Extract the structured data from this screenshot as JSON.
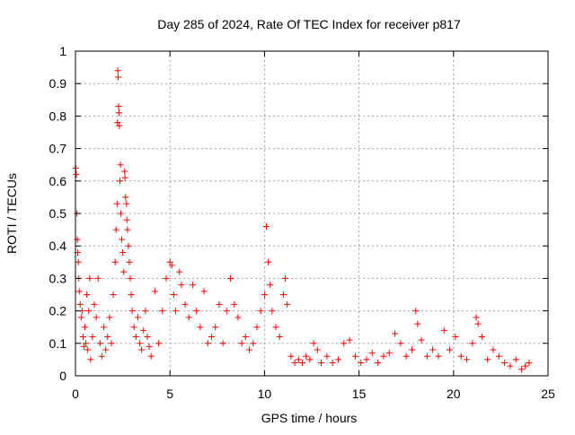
{
  "chart_data": {
    "type": "scatter",
    "title": "Day 285 of 2024, Rate Of TEC Index for receiver p817",
    "xlabel": "GPS time / hours",
    "ylabel": "ROTI / TECUs",
    "xlim": [
      0,
      25
    ],
    "ylim": [
      0,
      1
    ],
    "xticks": [
      0,
      5,
      10,
      15,
      20,
      25
    ],
    "xtick_labels": [
      "0",
      "5",
      "10",
      "15",
      "20",
      "25"
    ],
    "yticks": [
      0,
      0.1,
      0.2,
      0.3,
      0.4,
      0.5,
      0.6,
      0.7,
      0.8,
      0.9,
      1
    ],
    "ytick_labels": [
      "0",
      "0.1",
      "0.2",
      "0.3",
      "0.4",
      "0.5",
      "0.6",
      "0.7",
      "0.8",
      "0.9",
      "1"
    ],
    "grid": true,
    "marker": "+",
    "color": "#ff0000",
    "series": [
      {
        "points": [
          [
            0.02,
            0.64
          ],
          [
            0.05,
            0.62
          ],
          [
            0.08,
            0.5
          ],
          [
            0.1,
            0.42
          ],
          [
            0.12,
            0.38
          ],
          [
            0.15,
            0.35
          ],
          [
            0.18,
            0.3
          ],
          [
            0.2,
            0.26
          ],
          [
            0.25,
            0.22
          ],
          [
            0.3,
            0.18
          ],
          [
            0.35,
            0.2
          ],
          [
            0.4,
            0.12
          ],
          [
            0.45,
            0.09
          ],
          [
            0.5,
            0.15
          ],
          [
            0.55,
            0.1
          ],
          [
            0.6,
            0.25
          ],
          [
            0.65,
            0.08
          ],
          [
            0.7,
            0.2
          ],
          [
            0.75,
            0.3
          ],
          [
            0.8,
            0.05
          ],
          [
            0.9,
            0.12
          ],
          [
            1.0,
            0.22
          ],
          [
            1.1,
            0.18
          ],
          [
            1.2,
            0.3
          ],
          [
            1.3,
            0.1
          ],
          [
            1.4,
            0.06
          ],
          [
            1.5,
            0.15
          ],
          [
            1.6,
            0.08
          ],
          [
            1.7,
            0.12
          ],
          [
            1.8,
            0.18
          ],
          [
            1.9,
            0.1
          ],
          [
            2.0,
            0.25
          ],
          [
            2.1,
            0.35
          ],
          [
            2.15,
            0.45
          ],
          [
            2.2,
            0.53
          ],
          [
            2.22,
            0.78
          ],
          [
            2.24,
            0.94
          ],
          [
            2.26,
            0.92
          ],
          [
            2.28,
            0.83
          ],
          [
            2.3,
            0.81
          ],
          [
            2.32,
            0.77
          ],
          [
            2.35,
            0.6
          ],
          [
            2.38,
            0.65
          ],
          [
            2.4,
            0.5
          ],
          [
            2.45,
            0.42
          ],
          [
            2.5,
            0.38
          ],
          [
            2.55,
            0.32
          ],
          [
            2.6,
            0.63
          ],
          [
            2.62,
            0.61
          ],
          [
            2.65,
            0.55
          ],
          [
            2.7,
            0.53
          ],
          [
            2.72,
            0.48
          ],
          [
            2.75,
            0.45
          ],
          [
            2.8,
            0.4
          ],
          [
            2.85,
            0.35
          ],
          [
            2.9,
            0.3
          ],
          [
            2.95,
            0.25
          ],
          [
            3.0,
            0.2
          ],
          [
            3.1,
            0.15
          ],
          [
            3.2,
            0.12
          ],
          [
            3.3,
            0.18
          ],
          [
            3.4,
            0.1
          ],
          [
            3.5,
            0.08
          ],
          [
            3.6,
            0.14
          ],
          [
            3.7,
            0.2
          ],
          [
            3.8,
            0.12
          ],
          [
            3.9,
            0.09
          ],
          [
            4.0,
            0.06
          ],
          [
            4.2,
            0.26
          ],
          [
            4.4,
            0.1
          ],
          [
            4.6,
            0.2
          ],
          [
            4.8,
            0.3
          ],
          [
            5.0,
            0.35
          ],
          [
            5.1,
            0.34
          ],
          [
            5.2,
            0.25
          ],
          [
            5.3,
            0.2
          ],
          [
            5.5,
            0.32
          ],
          [
            5.6,
            0.28
          ],
          [
            5.8,
            0.22
          ],
          [
            6.0,
            0.18
          ],
          [
            6.2,
            0.28
          ],
          [
            6.4,
            0.2
          ],
          [
            6.6,
            0.15
          ],
          [
            6.8,
            0.26
          ],
          [
            7.0,
            0.1
          ],
          [
            7.2,
            0.12
          ],
          [
            7.4,
            0.15
          ],
          [
            7.6,
            0.22
          ],
          [
            7.8,
            0.1
          ],
          [
            8.0,
            0.2
          ],
          [
            8.2,
            0.3
          ],
          [
            8.4,
            0.22
          ],
          [
            8.6,
            0.18
          ],
          [
            8.8,
            0.1
          ],
          [
            9.0,
            0.12
          ],
          [
            9.2,
            0.08
          ],
          [
            9.4,
            0.1
          ],
          [
            9.6,
            0.15
          ],
          [
            9.8,
            0.2
          ],
          [
            10.0,
            0.25
          ],
          [
            10.1,
            0.46
          ],
          [
            10.2,
            0.35
          ],
          [
            10.3,
            0.28
          ],
          [
            10.4,
            0.2
          ],
          [
            10.6,
            0.15
          ],
          [
            10.8,
            0.12
          ],
          [
            11.0,
            0.25
          ],
          [
            11.1,
            0.3
          ],
          [
            11.2,
            0.22
          ],
          [
            11.4,
            0.06
          ],
          [
            11.6,
            0.04
          ],
          [
            11.8,
            0.05
          ],
          [
            12.0,
            0.04
          ],
          [
            12.2,
            0.06
          ],
          [
            12.4,
            0.05
          ],
          [
            12.6,
            0.1
          ],
          [
            12.8,
            0.08
          ],
          [
            13.0,
            0.04
          ],
          [
            13.3,
            0.06
          ],
          [
            13.6,
            0.04
          ],
          [
            13.9,
            0.05
          ],
          [
            14.2,
            0.1
          ],
          [
            14.5,
            0.11
          ],
          [
            14.8,
            0.06
          ],
          [
            15.1,
            0.04
          ],
          [
            15.4,
            0.05
          ],
          [
            15.7,
            0.07
          ],
          [
            16.0,
            0.04
          ],
          [
            16.3,
            0.06
          ],
          [
            16.6,
            0.07
          ],
          [
            16.9,
            0.13
          ],
          [
            17.2,
            0.1
          ],
          [
            17.5,
            0.06
          ],
          [
            17.8,
            0.08
          ],
          [
            18.0,
            0.2
          ],
          [
            18.1,
            0.16
          ],
          [
            18.3,
            0.11
          ],
          [
            18.6,
            0.06
          ],
          [
            18.9,
            0.08
          ],
          [
            19.2,
            0.06
          ],
          [
            19.5,
            0.14
          ],
          [
            19.8,
            0.08
          ],
          [
            20.1,
            0.12
          ],
          [
            20.4,
            0.06
          ],
          [
            20.7,
            0.05
          ],
          [
            21.0,
            0.1
          ],
          [
            21.2,
            0.18
          ],
          [
            21.3,
            0.16
          ],
          [
            21.5,
            0.12
          ],
          [
            21.8,
            0.05
          ],
          [
            22.1,
            0.08
          ],
          [
            22.4,
            0.06
          ],
          [
            22.7,
            0.04
          ],
          [
            23.0,
            0.03
          ],
          [
            23.3,
            0.05
          ],
          [
            23.6,
            0.02
          ],
          [
            23.8,
            0.03
          ],
          [
            24.0,
            0.04
          ]
        ]
      }
    ]
  }
}
